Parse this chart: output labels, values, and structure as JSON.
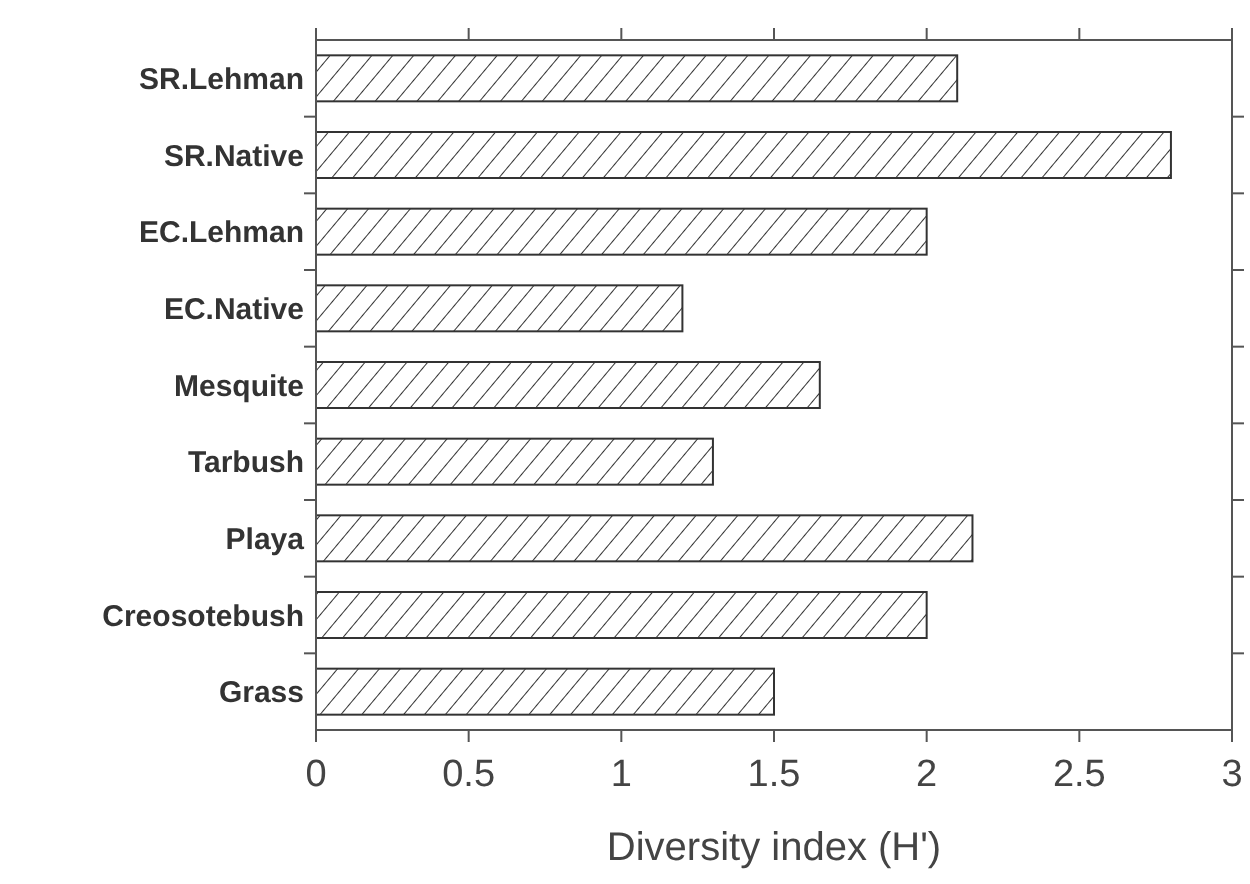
{
  "chart_data": {
    "type": "bar",
    "orientation": "horizontal",
    "xlabel": "Diversity index (H')",
    "categories": [
      "SR.Lehman",
      "SR.Native",
      "EC.Lehman",
      "EC.Native",
      "Mesquite",
      "Tarbush",
      "Playa",
      "Creosotebush",
      "Grass"
    ],
    "values": [
      2.1,
      2.8,
      2.0,
      1.2,
      1.65,
      1.3,
      2.15,
      2.0,
      1.5
    ],
    "color": "#333333",
    "xlim": [
      0,
      3
    ],
    "xticks": [
      0,
      0.5,
      1,
      1.5,
      2,
      2.5,
      3
    ],
    "grid": false
  }
}
